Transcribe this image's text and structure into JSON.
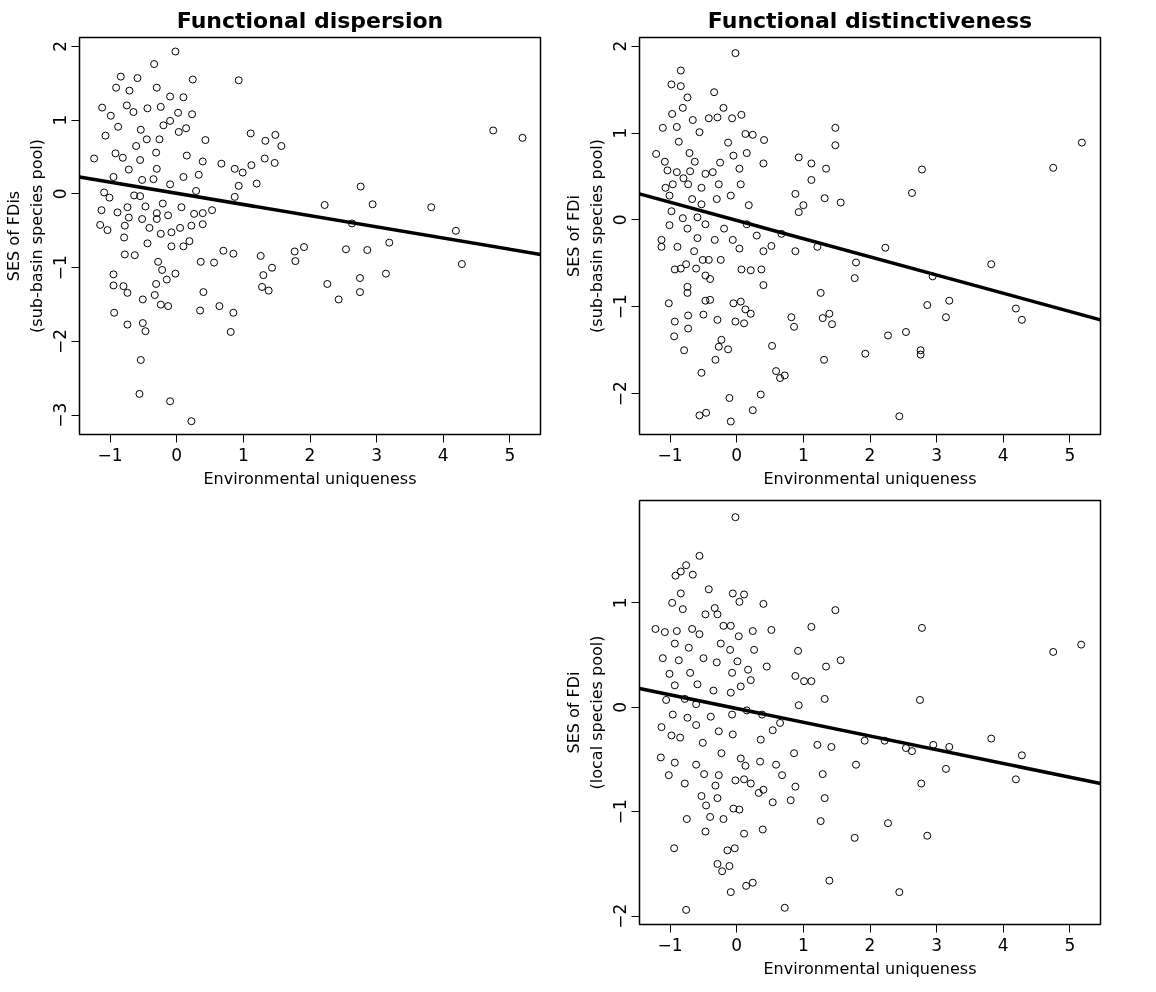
{
  "chart_data": [
    {
      "type": "scatter",
      "title": "Functional dispersion",
      "xlabel": "Environmental uniqueness",
      "ylabel": "SES of FDis\n(sub-basin species pool)",
      "xlim": [
        -1.46,
        5.46
      ],
      "ylim": [
        -3.26,
        2.12
      ],
      "xticks": [
        -1,
        0,
        1,
        2,
        3,
        4,
        5
      ],
      "yticks": [
        -3,
        -2,
        -1,
        0,
        1,
        2
      ],
      "grid": false,
      "series": [
        {
          "type": "scatter",
          "marker": "circle",
          "color": "#000000",
          "x": [
            -0.02,
            -0.34,
            -0.84,
            -0.59,
            0.24,
            0.93,
            -0.91,
            -0.3,
            -0.71,
            -0.1,
            0.1,
            -1.12,
            -0.75,
            -0.44,
            -0.24,
            0.02,
            0.23,
            -0.99,
            -0.65,
            -0.1,
            -0.88,
            -0.54,
            -0.2,
            0.14,
            0.03,
            1.11,
            1.33,
            1.48,
            1.57,
            0.43,
            4.75,
            -1.07,
            -0.45,
            -0.26,
            -0.61,
            -0.92,
            -0.31,
            0.15,
            -1.24,
            -0.81,
            -0.55,
            0.39,
            0.67,
            1.32,
            1.47,
            1.12,
            0.87,
            0.99,
            -0.3,
            -0.72,
            0.33,
            -0.95,
            -0.52,
            0.1,
            -0.35,
            1.2,
            0.93,
            -0.1,
            -1.09,
            -0.64,
            0.29,
            0.87,
            2.76,
            -1.01,
            -0.55,
            -0.21,
            0.07,
            0.53,
            2.22,
            2.94,
            3.82,
            -1.13,
            -0.89,
            -0.74,
            -0.47,
            -0.3,
            -0.13,
            0.26,
            0.39,
            -0.72,
            -0.52,
            -0.3,
            -1.15,
            -1.04,
            -0.78,
            -0.41,
            0.05,
            0.22,
            0.39,
            2.63,
            4.19,
            -0.79,
            -0.24,
            -0.08,
            0.19,
            -0.44,
            -0.78,
            -0.63,
            -0.08,
            0.1,
            0.7,
            0.85,
            1.26,
            1.77,
            1.91,
            2.54,
            2.86,
            3.19,
            4.28,
            -0.28,
            0.36,
            0.56,
            -0.22,
            -0.02,
            1.3,
            1.43,
            1.78,
            3.14,
            -0.95,
            -0.15,
            2.75,
            -0.95,
            -0.8,
            -0.74,
            -0.31,
            2.26,
            1.28,
            1.38,
            0.4,
            2.75,
            -0.51,
            -0.33,
            2.43,
            -0.24,
            -0.13,
            0.64,
            -0.94,
            0.35,
            0.85,
            -0.74,
            -0.51,
            -0.47,
            0.81,
            -0.54,
            -0.56,
            -0.1,
            0.22,
            5.19
          ],
          "values": [
            1.93,
            1.76,
            1.59,
            1.57,
            1.55,
            1.54,
            1.44,
            1.44,
            1.4,
            1.32,
            1.31,
            1.17,
            1.2,
            1.16,
            1.18,
            1.1,
            1.08,
            1.06,
            1.11,
            0.99,
            0.91,
            0.87,
            0.93,
            0.89,
            0.84,
            0.82,
            0.72,
            0.8,
            0.65,
            0.73,
            0.86,
            0.79,
            0.74,
            0.74,
            0.65,
            0.55,
            0.56,
            0.52,
            0.48,
            0.49,
            0.46,
            0.44,
            0.41,
            0.48,
            0.42,
            0.39,
            0.34,
            0.29,
            0.34,
            0.33,
            0.26,
            0.23,
            0.19,
            0.23,
            0.2,
            0.14,
            0.11,
            0.13,
            0.02,
            -0.02,
            0.04,
            -0.04,
            0.1,
            -0.05,
            -0.03,
            -0.13,
            -0.18,
            -0.22,
            -0.15,
            -0.14,
            -0.18,
            -0.22,
            -0.25,
            -0.18,
            -0.17,
            -0.26,
            -0.29,
            -0.27,
            -0.26,
            -0.32,
            -0.34,
            -0.34,
            -0.42,
            -0.49,
            -0.43,
            -0.46,
            -0.46,
            -0.43,
            -0.41,
            -0.4,
            -0.5,
            -0.59,
            -0.54,
            -0.52,
            -0.64,
            -0.67,
            -0.82,
            -0.83,
            -0.71,
            -0.71,
            -0.77,
            -0.81,
            -0.84,
            -0.78,
            -0.72,
            -0.75,
            -0.76,
            -0.66,
            -0.95,
            -0.92,
            -0.92,
            -0.93,
            -1.03,
            -1.08,
            -1.1,
            -1.0,
            -0.91,
            -1.08,
            -1.09,
            -1.16,
            -1.14,
            -1.24,
            -1.25,
            -1.34,
            -1.22,
            -1.22,
            -1.26,
            -1.31,
            -1.33,
            -1.33,
            -1.43,
            -1.37,
            -1.43,
            -1.5,
            -1.52,
            -1.52,
            -1.61,
            -1.58,
            -1.61,
            -1.77,
            -1.75,
            -1.86,
            -1.87,
            -2.25,
            -2.71,
            -2.81,
            -3.08,
            0.76
          ]
        },
        {
          "type": "line",
          "line_style": "solid",
          "color": "#000000",
          "x": [
            -1.46,
            5.46
          ],
          "values": [
            0.23,
            -0.82
          ]
        }
      ]
    },
    {
      "type": "scatter",
      "title": "Functional distinctiveness",
      "xlabel": "Environmental uniqueness",
      "ylabel": "SES of FDi\n(sub-basin species pool)",
      "xlim": [
        -1.46,
        5.46
      ],
      "ylim": [
        -2.47,
        2.1
      ],
      "xticks": [
        -1,
        0,
        1,
        2,
        3,
        4,
        5
      ],
      "yticks": [
        -2,
        -1,
        0,
        1,
        2
      ],
      "grid": false,
      "series": [
        {
          "type": "scatter",
          "marker": "circle",
          "color": "#000000",
          "x": [
            -0.02,
            -0.84,
            -0.98,
            -0.84,
            -0.34,
            -0.74,
            -0.81,
            -0.2,
            -0.97,
            0.07,
            -0.42,
            -0.07,
            -0.66,
            -0.29,
            -1.11,
            -0.9,
            -0.56,
            1.48,
            0.13,
            0.24,
            -0.13,
            0.41,
            -0.87,
            1.48,
            -1.21,
            -0.71,
            -0.05,
            0.93,
            0.15,
            -1.08,
            -0.25,
            1.12,
            -0.63,
            0.4,
            -1.04,
            -0.9,
            -0.7,
            -0.36,
            0.04,
            1.34,
            2.78,
            -0.8,
            -0.47,
            1.12,
            -1.07,
            -0.96,
            -0.73,
            -0.27,
            0.06,
            -0.53,
            0.88,
            2.63,
            4.75,
            5.18,
            -1.01,
            -0.67,
            -0.09,
            -0.3,
            0.18,
            1.32,
            1.56,
            1.0,
            -0.53,
            -0.98,
            0.93,
            -0.59,
            -0.81,
            -1.01,
            -0.47,
            0.15,
            -0.74,
            -0.19,
            0.3,
            0.67,
            -0.59,
            -0.33,
            -1.13,
            -0.06,
            -1.13,
            -0.89,
            0.04,
            0.52,
            1.21,
            0.4,
            0.88,
            2.23,
            -0.64,
            -0.51,
            -0.42,
            -0.24,
            1.79,
            3.82,
            -0.76,
            -0.93,
            -0.84,
            -0.61,
            0.07,
            0.21,
            0.37,
            2.94,
            -0.47,
            -0.4,
            1.77,
            0.4,
            -0.74,
            1.26,
            -0.74,
            -0.47,
            -0.4,
            -0.05,
            -1.02,
            0.06,
            0.13,
            3.19,
            2.86,
            -0.73,
            -0.5,
            0.21,
            0.82,
            1.39,
            1.29,
            3.14,
            4.19,
            4.28,
            -0.93,
            -0.29,
            -0.02,
            0.11,
            1.43,
            0.86,
            -0.73,
            -0.94,
            2.27,
            2.54,
            -0.23,
            -0.27,
            -0.13,
            -0.79,
            0.53,
            1.93,
            2.76,
            2.76,
            -0.32,
            1.31,
            -0.53,
            0.59,
            0.72,
            0.65,
            -0.11,
            0.36,
            -0.56,
            -0.46,
            0.24,
            -0.09,
            2.44
          ],
          "values": [
            1.92,
            1.72,
            1.56,
            1.54,
            1.47,
            1.41,
            1.29,
            1.29,
            1.22,
            1.21,
            1.17,
            1.17,
            1.15,
            1.18,
            1.06,
            1.07,
            1.01,
            1.06,
            0.99,
            0.98,
            0.89,
            0.92,
            0.9,
            0.86,
            0.76,
            0.77,
            0.74,
            0.72,
            0.77,
            0.67,
            0.66,
            0.65,
            0.67,
            0.65,
            0.57,
            0.55,
            0.56,
            0.55,
            0.59,
            0.59,
            0.58,
            0.48,
            0.53,
            0.46,
            0.37,
            0.41,
            0.41,
            0.41,
            0.41,
            0.37,
            0.3,
            0.31,
            0.6,
            0.89,
            0.28,
            0.24,
            0.28,
            0.24,
            0.17,
            0.25,
            0.2,
            0.17,
            0.18,
            0.1,
            0.09,
            0.03,
            0.02,
            -0.06,
            -0.05,
            -0.05,
            -0.1,
            -0.1,
            -0.18,
            -0.16,
            -0.21,
            -0.23,
            -0.23,
            -0.23,
            -0.31,
            -0.31,
            -0.33,
            -0.3,
            -0.31,
            -0.36,
            -0.36,
            -0.32,
            -0.36,
            -0.46,
            -0.46,
            -0.46,
            -0.49,
            -0.51,
            -0.51,
            -0.57,
            -0.56,
            -0.56,
            -0.57,
            -0.58,
            -0.57,
            -0.65,
            -0.64,
            -0.68,
            -0.67,
            -0.75,
            -0.77,
            -0.84,
            -0.84,
            -0.93,
            -0.92,
            -0.96,
            -0.96,
            -0.94,
            -1.03,
            -0.93,
            -0.98,
            -1.1,
            -1.09,
            -1.08,
            -1.12,
            -1.08,
            -1.13,
            -1.12,
            -1.02,
            -1.15,
            -1.17,
            -1.15,
            -1.17,
            -1.19,
            -1.2,
            -1.23,
            -1.25,
            -1.34,
            -1.33,
            -1.29,
            -1.38,
            -1.46,
            -1.49,
            -1.5,
            -1.45,
            -1.54,
            -1.5,
            -1.55,
            -1.61,
            -1.61,
            -1.76,
            -1.74,
            -1.79,
            -1.82,
            -2.05,
            -2.01,
            -2.25,
            -2.22,
            -2.19,
            -2.32,
            -2.26
          ]
        },
        {
          "type": "line",
          "line_style": "solid",
          "color": "#000000",
          "x": [
            -1.46,
            5.46
          ],
          "values": [
            0.3,
            -1.15
          ]
        }
      ]
    },
    {
      "type": "scatter",
      "xlabel": "Environmental uniqueness",
      "ylabel": "SES of FDi\n(local species pool)",
      "xlim": [
        -1.46,
        5.46
      ],
      "ylim": [
        -2.08,
        1.98
      ],
      "xticks": [
        -1,
        0,
        1,
        2,
        3,
        4,
        5
      ],
      "yticks": [
        -2,
        -1,
        0,
        1
      ],
      "grid": false,
      "series": [
        {
          "type": "scatter",
          "marker": "circle",
          "color": "#000000",
          "x": [
            -0.02,
            -0.56,
            -0.92,
            -0.76,
            -0.66,
            -0.84,
            -0.42,
            -0.84,
            -0.06,
            0.11,
            0.04,
            0.4,
            1.48,
            -0.97,
            -0.33,
            -0.81,
            -0.47,
            -0.29,
            -1.22,
            -1.08,
            -0.9,
            -0.2,
            -0.09,
            1.12,
            2.78,
            0.52,
            0.24,
            -0.67,
            -0.56,
            0.03,
            -0.24,
            -0.93,
            -0.72,
            -0.1,
            0.26,
            0.92,
            5.17,
            4.75,
            -1.11,
            -0.87,
            -0.5,
            -0.3,
            0.01,
            1.56,
            1.34,
            0.45,
            0.17,
            -1.01,
            -0.7,
            -0.07,
            0.88,
            1.01,
            1.12,
            0.21,
            -0.93,
            -0.59,
            0.06,
            -0.35,
            -0.09,
            -1.06,
            -0.78,
            1.32,
            2.75,
            -0.61,
            0.93,
            0.15,
            -0.96,
            -0.74,
            -0.07,
            -0.39,
            0.38,
            -1.13,
            -0.61,
            -0.27,
            0.54,
            0.65,
            -0.06,
            -0.98,
            -0.85,
            0.36,
            1.92,
            2.22,
            -0.51,
            1.21,
            1.42,
            2.54,
            2.63,
            2.95,
            3.19,
            3.82,
            -0.23,
            0.06,
            0.86,
            4.28,
            -1.14,
            -0.93,
            0.35,
            -0.61,
            0.13,
            0.59,
            1.79,
            3.14,
            -1.02,
            -0.49,
            -0.27,
            0.68,
            1.29,
            -0.02,
            -0.78,
            0.11,
            4.19,
            0.21,
            0.88,
            2.77,
            -0.32,
            0.33,
            0.4,
            -0.53,
            -0.29,
            0.81,
            1.32,
            0.54,
            -0.46,
            -0.05,
            0.04,
            -0.75,
            -0.4,
            -0.2,
            1.26,
            2.27,
            0.39,
            -0.47,
            0.11,
            2.86,
            1.77,
            -0.94,
            -0.03,
            -0.14,
            -0.29,
            -0.11,
            -0.22,
            1.39,
            0.14,
            0.24,
            -0.09,
            2.44,
            0.72,
            -0.76
          ],
          "values": [
            1.82,
            1.45,
            1.26,
            1.36,
            1.27,
            1.3,
            1.13,
            1.09,
            1.09,
            1.08,
            1.01,
            0.99,
            0.93,
            1.0,
            0.95,
            0.94,
            0.89,
            0.89,
            0.75,
            0.72,
            0.73,
            0.78,
            0.78,
            0.77,
            0.76,
            0.74,
            0.73,
            0.75,
            0.7,
            0.68,
            0.61,
            0.61,
            0.57,
            0.55,
            0.55,
            0.54,
            0.6,
            0.53,
            0.47,
            0.45,
            0.47,
            0.43,
            0.44,
            0.45,
            0.39,
            0.39,
            0.36,
            0.32,
            0.33,
            0.33,
            0.3,
            0.25,
            0.25,
            0.26,
            0.21,
            0.22,
            0.2,
            0.16,
            0.14,
            0.07,
            0.08,
            0.08,
            0.07,
            0.03,
            0.02,
            -0.03,
            -0.07,
            -0.1,
            -0.07,
            -0.09,
            -0.07,
            -0.19,
            -0.17,
            -0.23,
            -0.22,
            -0.15,
            -0.26,
            -0.27,
            -0.29,
            -0.31,
            -0.32,
            -0.32,
            -0.34,
            -0.36,
            -0.38,
            -0.39,
            -0.42,
            -0.36,
            -0.38,
            -0.3,
            -0.44,
            -0.49,
            -0.44,
            -0.46,
            -0.48,
            -0.53,
            -0.52,
            -0.55,
            -0.56,
            -0.55,
            -0.55,
            -0.59,
            -0.65,
            -0.64,
            -0.65,
            -0.65,
            -0.64,
            -0.7,
            -0.73,
            -0.69,
            -0.69,
            -0.73,
            -0.76,
            -0.73,
            -0.75,
            -0.82,
            -0.79,
            -0.85,
            -0.87,
            -0.89,
            -0.87,
            -0.91,
            -0.94,
            -0.97,
            -0.98,
            -1.07,
            -1.05,
            -1.07,
            -1.09,
            -1.11,
            -1.17,
            -1.19,
            -1.21,
            -1.23,
            -1.25,
            -1.35,
            -1.35,
            -1.37,
            -1.5,
            -1.52,
            -1.57,
            -1.66,
            -1.71,
            -1.68,
            -1.77,
            -1.77,
            -1.92,
            -1.94
          ]
        },
        {
          "type": "line",
          "line_style": "solid",
          "color": "#000000",
          "x": [
            -1.46,
            5.46
          ],
          "values": [
            0.18,
            -0.73
          ]
        }
      ]
    }
  ]
}
